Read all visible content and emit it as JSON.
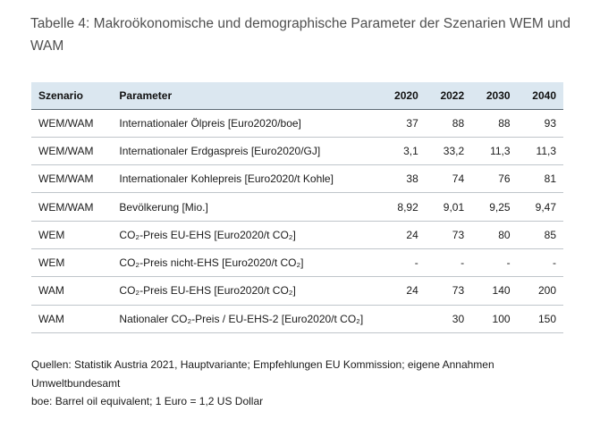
{
  "caption": "Tabelle 4: Makroökonomische und demographische Parameter der Szenarien WEM und WAM",
  "table": {
    "headers": [
      "Szenario",
      "Parameter",
      "2020",
      "2022",
      "2030",
      "2040"
    ],
    "rows": [
      [
        "WEM/WAM",
        "Internationaler Ölpreis [Euro2020/boe]",
        "37",
        "88",
        "88",
        "93"
      ],
      [
        "WEM/WAM",
        "Internationaler Erdgaspreis [Euro2020/GJ]",
        "3,1",
        "33,2",
        "11,3",
        "11,3"
      ],
      [
        "WEM/WAM",
        "Internationaler Kohlepreis [Euro2020/t Kohle]",
        "38",
        "74",
        "76",
        "81"
      ],
      [
        "WEM/WAM",
        "Bevölkerung [Mio.]",
        "8,92",
        "9,01",
        "9,25",
        "9,47"
      ],
      [
        "WEM",
        "CO₂-Preis EU-EHS [Euro2020/t CO₂]",
        "24",
        "73",
        "80",
        "85"
      ],
      [
        "WEM",
        "CO₂-Preis nicht-EHS [Euro2020/t CO₂]",
        "-",
        "-",
        "-",
        "-"
      ],
      [
        "WAM",
        "CO₂-Preis EU-EHS [Euro2020/t CO₂]",
        "24",
        "73",
        "140",
        "200"
      ],
      [
        "WAM",
        "Nationaler CO₂-Preis / EU-EHS-2 [Euro2020/t CO₂]",
        "",
        "30",
        "100",
        "150"
      ]
    ]
  },
  "notes": [
    "Quellen: Statistik Austria 2021, Hauptvariante; Empfehlungen EU Kommission; eigene Annahmen Umweltbundesamt",
    "boe: Barrel oil equivalent; 1 Euro = 1,2 US Dollar"
  ]
}
